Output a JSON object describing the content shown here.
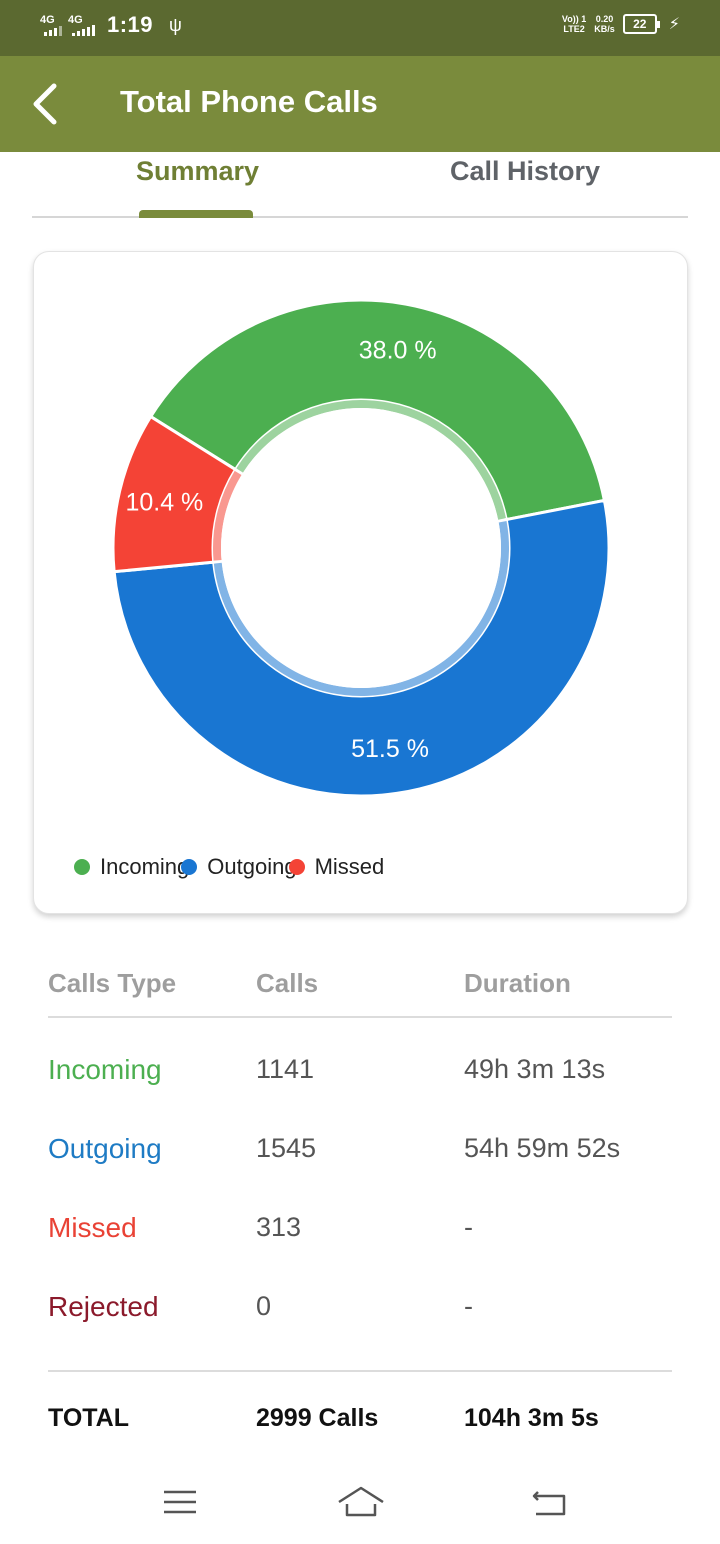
{
  "status_bar": {
    "net1": "4G",
    "net2": "4G",
    "time": "1:19",
    "volte": "Vo)) 1",
    "lte": "LTE2",
    "speed": "0.20",
    "speed_unit": "KB/s",
    "battery": "22"
  },
  "app_bar": {
    "title": "Total Phone Calls",
    "back_icon": "chevron-left-icon"
  },
  "tabs": [
    {
      "label": "Summary",
      "selected": true
    },
    {
      "label": "Call History",
      "selected": false
    }
  ],
  "chart_data": {
    "type": "pie",
    "labels": [
      "Incoming",
      "Outgoing",
      "Missed"
    ],
    "values": [
      38.0,
      51.5,
      10.4
    ],
    "value_labels": [
      "38.0 %",
      "51.5 %",
      "10.4 %"
    ],
    "colors": [
      "#4caf50",
      "#1976d2",
      "#f44336"
    ],
    "legend_position": "bottom-left"
  },
  "legend": [
    {
      "label": "Incoming",
      "color": "#4caf50"
    },
    {
      "label": "Outgoing",
      "color": "#1976d2"
    },
    {
      "label": "Missed",
      "color": "#f44336"
    }
  ],
  "table": {
    "headers": [
      "Calls Type",
      "Calls",
      "Duration"
    ],
    "rows": [
      {
        "type": "Incoming",
        "calls": "1141",
        "duration": "49h 3m 13s",
        "color": "#4caf50"
      },
      {
        "type": "Outgoing",
        "calls": "1545",
        "duration": "54h 59m 52s",
        "color": "#1e7bc4"
      },
      {
        "type": "Missed",
        "calls": "313",
        "duration": "-",
        "color": "#e94235"
      },
      {
        "type": "Rejected",
        "calls": "0",
        "duration": "-",
        "color": "#8b1a2b"
      }
    ],
    "total": {
      "label": "TOTAL",
      "calls": "2999 Calls",
      "duration": "104h 3m 5s"
    }
  },
  "nav_bar": {
    "icons": [
      "menu-icon",
      "home-icon",
      "back-icon"
    ]
  }
}
